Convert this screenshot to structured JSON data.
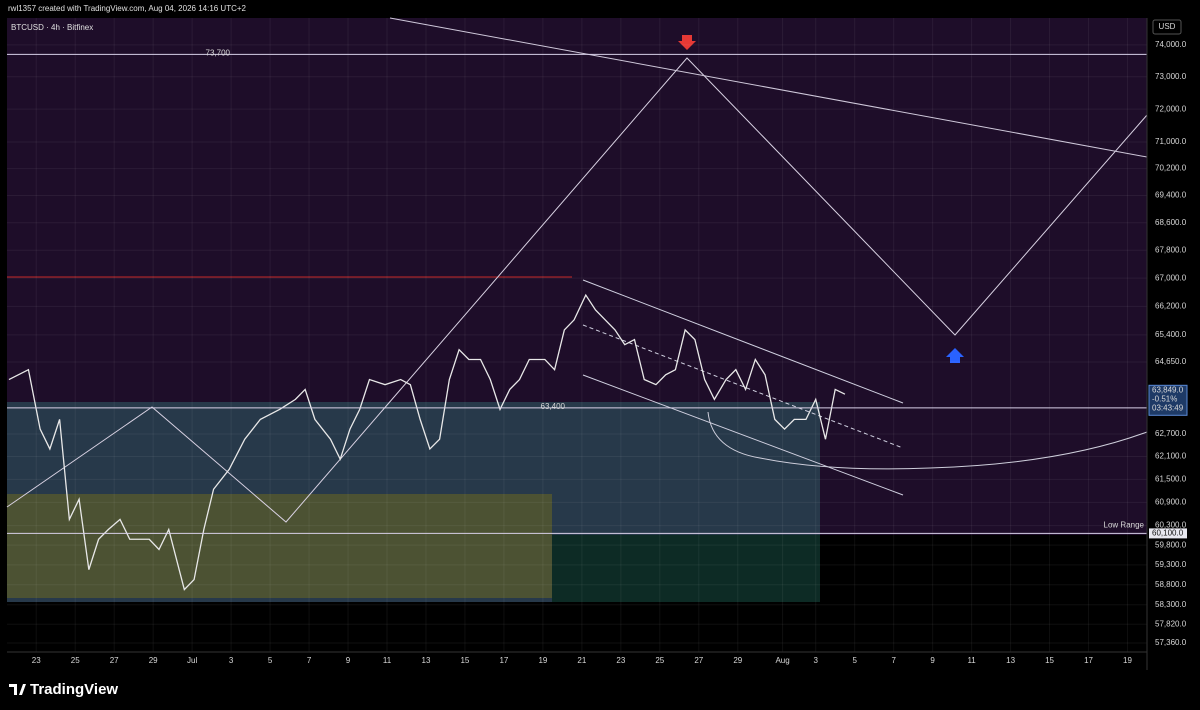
{
  "header": {
    "credit": "rwl1357 created with TradingView.com, Aug 04, 2026 14:16 UTC+2",
    "symbol": "BTCUSD · 4h · Bitfinex",
    "currency": "USD"
  },
  "footer": {
    "brand": "TradingView"
  },
  "chart_data": {
    "type": "line",
    "log_scale": true,
    "ylim": [
      57140,
      74850
    ],
    "yticks": [
      {
        "value": 74000,
        "label": "74,000.0"
      },
      {
        "value": 73000,
        "label": "73,000.0"
      },
      {
        "value": 72000,
        "label": "72,000.0"
      },
      {
        "value": 71000,
        "label": "71,000.0"
      },
      {
        "value": 70200,
        "label": "70,200.0"
      },
      {
        "value": 69400,
        "label": "69,400.0"
      },
      {
        "value": 68600,
        "label": "68,600.0"
      },
      {
        "value": 67800,
        "label": "67,800.0"
      },
      {
        "value": 67000,
        "label": "67,000.0"
      },
      {
        "value": 66200,
        "label": "66,200.0"
      },
      {
        "value": 65400,
        "label": "65,400.0"
      },
      {
        "value": 64650,
        "label": "64,650.0"
      },
      {
        "value": 62700,
        "label": "62,700.0"
      },
      {
        "value": 62100,
        "label": "62,100.0"
      },
      {
        "value": 61500,
        "label": "61,500.0"
      },
      {
        "value": 60900,
        "label": "60,900.0"
      },
      {
        "value": 60300,
        "label": "60,300.0"
      },
      {
        "value": 59800,
        "label": "59,800.0"
      },
      {
        "value": 59300,
        "label": "59,300.0"
      },
      {
        "value": 58800,
        "label": "58,800.0"
      },
      {
        "value": 58300,
        "label": "58,300.0"
      },
      {
        "value": 57820,
        "label": "57,820.0"
      },
      {
        "value": 57360,
        "label": "57,360.0"
      }
    ],
    "xlim": [
      21.5,
      80.0
    ],
    "xticks": [
      {
        "value": 23,
        "label": "23"
      },
      {
        "value": 25,
        "label": "25"
      },
      {
        "value": 27,
        "label": "27"
      },
      {
        "value": 29,
        "label": "29"
      },
      {
        "value": 31,
        "label": "Jul"
      },
      {
        "value": 33,
        "label": "3"
      },
      {
        "value": 35,
        "label": "5"
      },
      {
        "value": 37,
        "label": "7"
      },
      {
        "value": 39,
        "label": "9"
      },
      {
        "value": 41,
        "label": "11"
      },
      {
        "value": 43,
        "label": "13"
      },
      {
        "value": 45,
        "label": "15"
      },
      {
        "value": 47,
        "label": "17"
      },
      {
        "value": 49,
        "label": "19"
      },
      {
        "value": 51,
        "label": "21"
      },
      {
        "value": 53,
        "label": "23"
      },
      {
        "value": 55,
        "label": "25"
      },
      {
        "value": 57,
        "label": "27"
      },
      {
        "value": 59,
        "label": "29"
      },
      {
        "value": 61.3,
        "label": "Aug"
      },
      {
        "value": 63,
        "label": "3"
      },
      {
        "value": 65,
        "label": "5"
      },
      {
        "value": 67,
        "label": "7"
      },
      {
        "value": 69,
        "label": "9"
      },
      {
        "value": 71,
        "label": "11"
      },
      {
        "value": 73,
        "label": "13"
      },
      {
        "value": 75,
        "label": "15"
      },
      {
        "value": 77,
        "label": "17"
      },
      {
        "value": 79,
        "label": "19"
      }
    ],
    "series": [
      {
        "name": "BTCUSD",
        "color": "#e8e8e8",
        "x": [
          21.6,
          22.6,
          23.2,
          23.7,
          24.2,
          24.7,
          25.2,
          25.7,
          26.2,
          26.7,
          27.3,
          27.8,
          28.8,
          29.3,
          29.8,
          30.6,
          31.1,
          31.6,
          32.1,
          32.9,
          33.7,
          34.5,
          35.5,
          36.3,
          36.8,
          37.3,
          38.1,
          38.6,
          39.1,
          39.6,
          40.1,
          40.9,
          41.7,
          42.2,
          42.7,
          43.2,
          43.7,
          44.2,
          44.7,
          45.2,
          45.8,
          46.3,
          46.8,
          47.3,
          47.8,
          48.3,
          49.1,
          49.6,
          50.1,
          50.6,
          51.2,
          51.7,
          52.2,
          52.7,
          53.2,
          53.7,
          54.2,
          54.8,
          55.3,
          55.8,
          56.3,
          56.8,
          57.3,
          57.8,
          58.4,
          58.9,
          59.4,
          59.9,
          60.4,
          60.9,
          61.4,
          61.9,
          62.5,
          63.0,
          63.5,
          64.0,
          64.5
        ],
        "values": [
          64170,
          64440,
          62830,
          62300,
          63090,
          60460,
          60980,
          59180,
          59950,
          60200,
          60460,
          59950,
          59950,
          59690,
          60200,
          58680,
          58930,
          60200,
          61240,
          61760,
          62560,
          63090,
          63360,
          63630,
          63900,
          63090,
          62560,
          62030,
          62830,
          63360,
          64170,
          64030,
          64170,
          64030,
          63090,
          62300,
          62560,
          64170,
          64990,
          64720,
          64720,
          64170,
          63360,
          63900,
          64170,
          64720,
          64720,
          64440,
          65540,
          65820,
          66520,
          66100,
          65820,
          65540,
          65130,
          65270,
          64170,
          64030,
          64300,
          64440,
          65540,
          65270,
          64170,
          63630,
          64170,
          64440,
          63900,
          64720,
          64300,
          63090,
          62830,
          63090,
          63090,
          63630,
          62560,
          63900,
          63770
        ]
      }
    ],
    "levels": [
      {
        "value": 73700,
        "label": "73,700"
      },
      {
        "value": 63400,
        "label": "63,400"
      },
      {
        "value": 60100,
        "label": "60,100.0",
        "name": "Low Range"
      }
    ],
    "last_price": {
      "value": 63849,
      "label": "63,849.0",
      "change": "-0.51%",
      "countdown": "03:43:49"
    }
  }
}
